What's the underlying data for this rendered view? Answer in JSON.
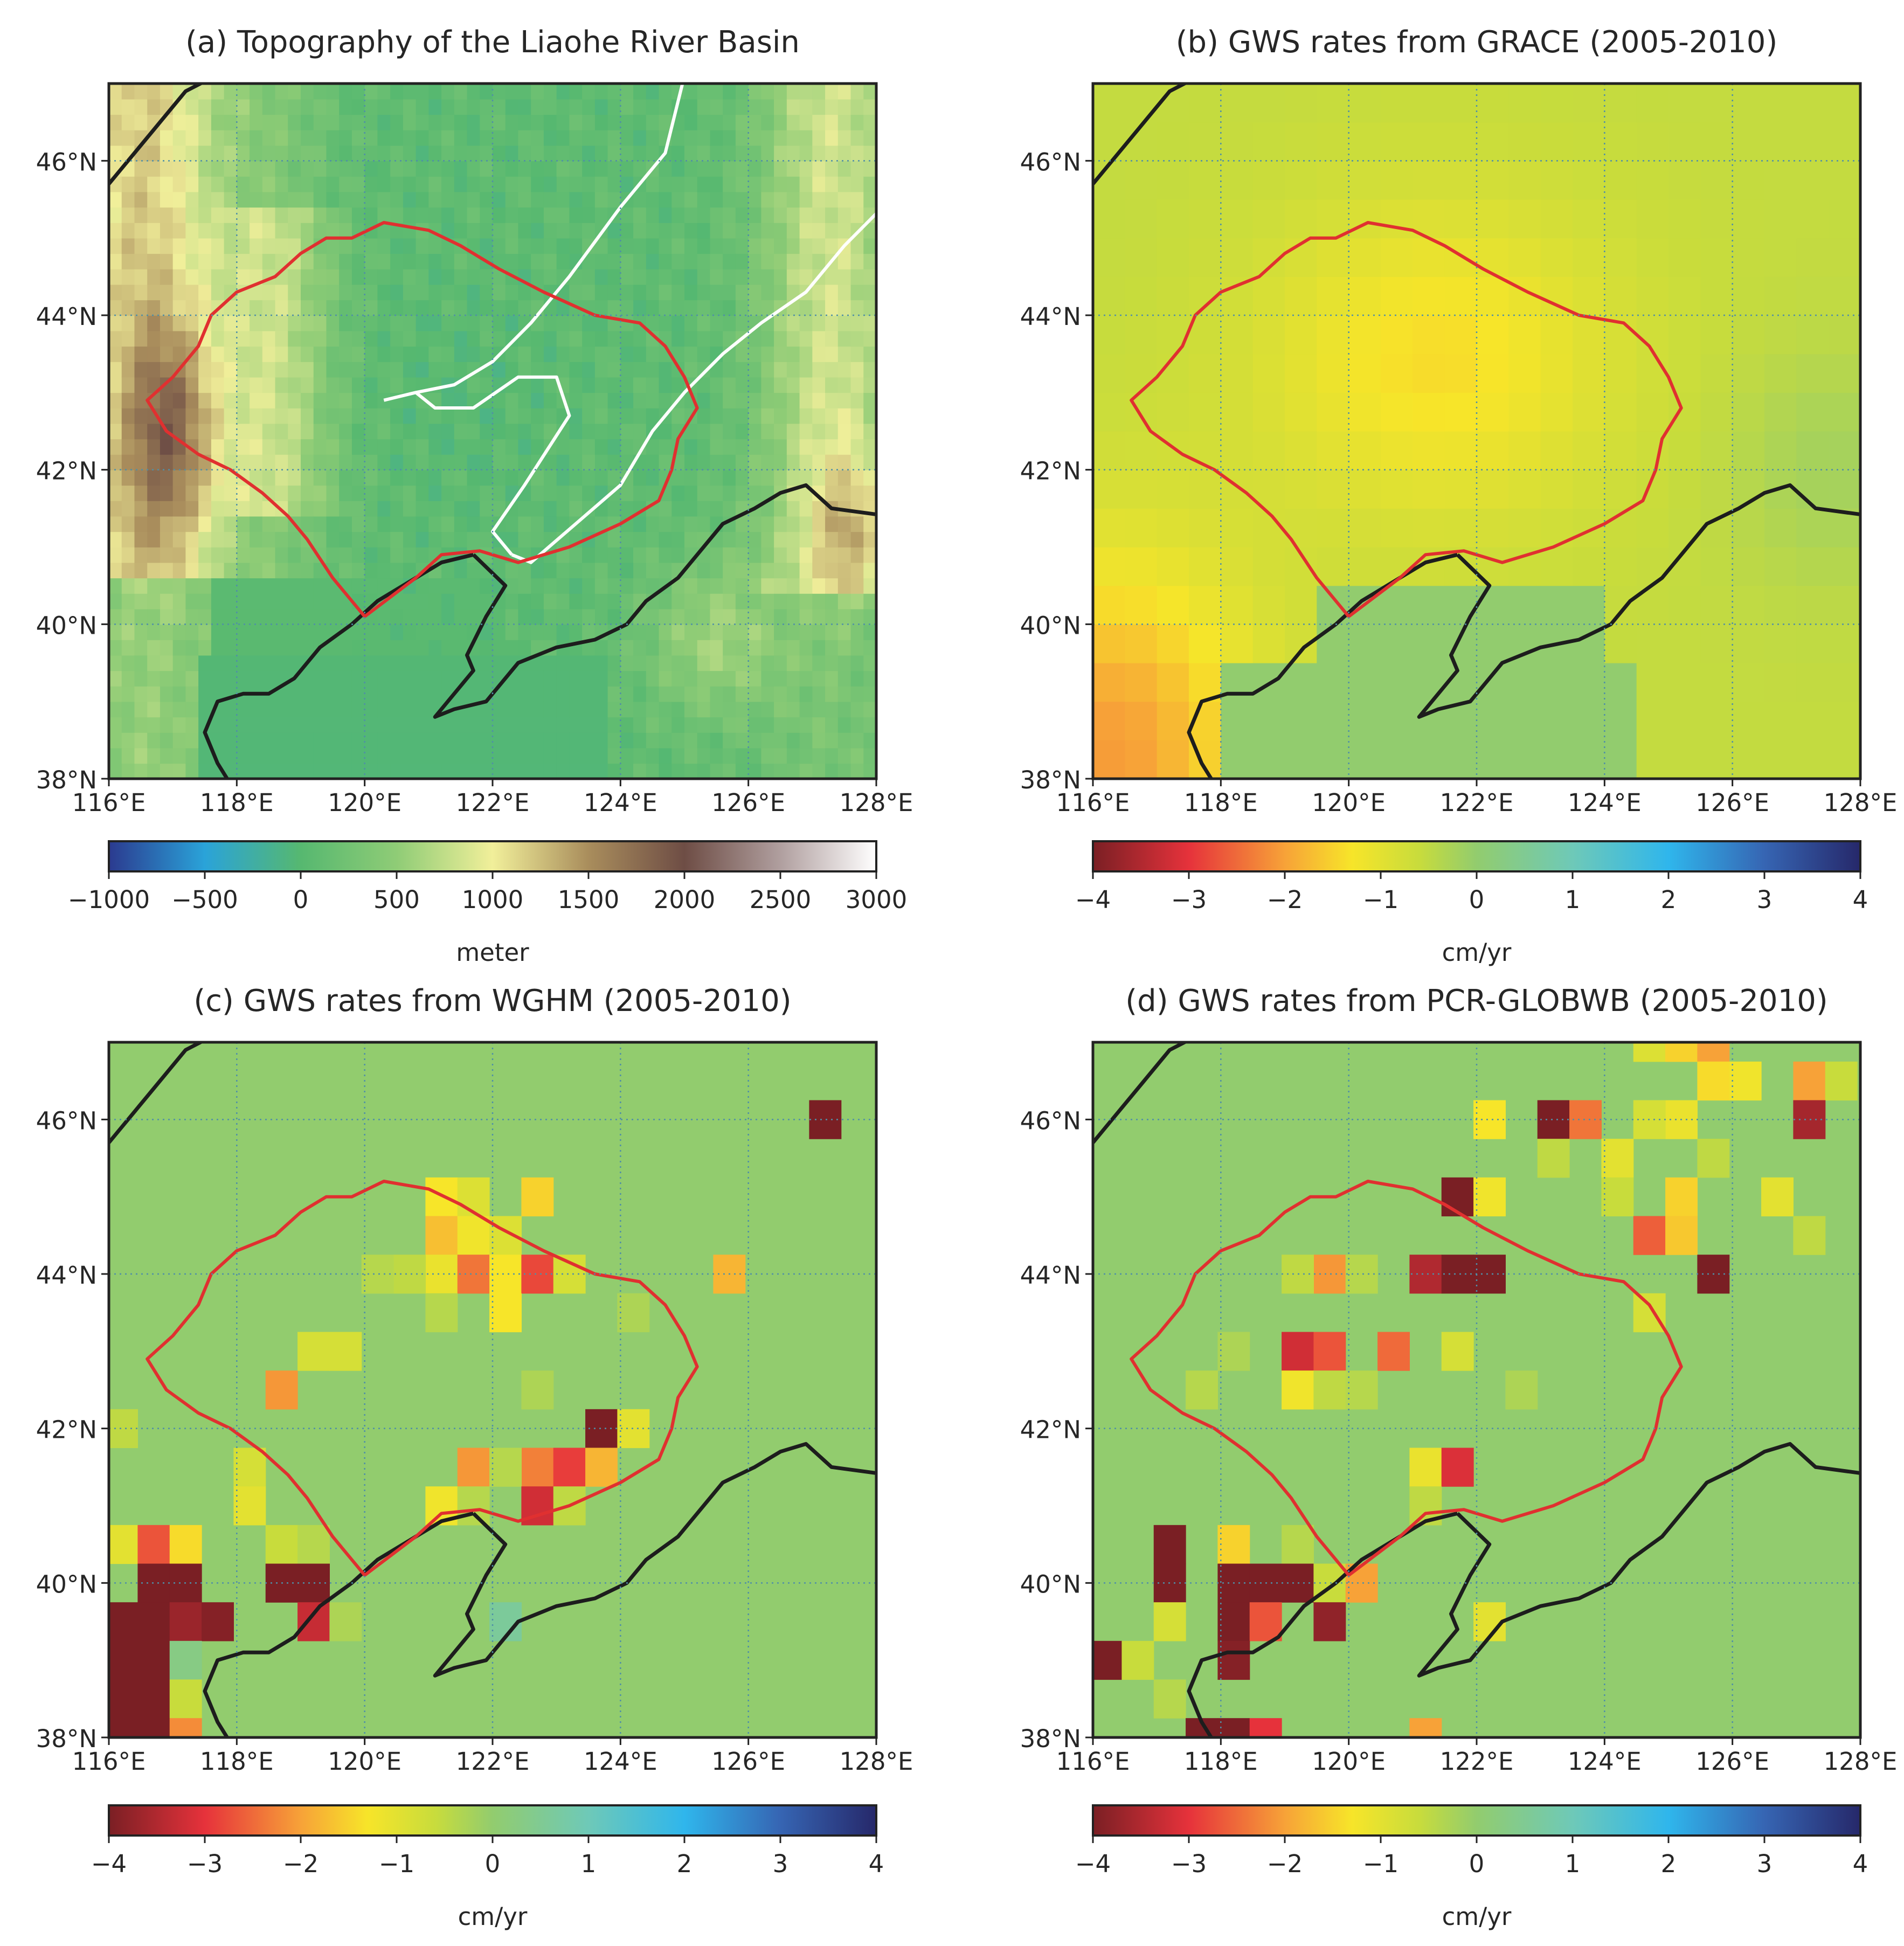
{
  "figure": {
    "panels": [
      {
        "id": "a",
        "title": "(a) Topography of the Liaohe River Basin",
        "kind": "topography",
        "colorbar": {
          "ticks": [
            "−1000",
            "−500",
            "0",
            "500",
            "1000",
            "1500",
            "2000",
            "2500",
            "3000"
          ],
          "label": "meter",
          "range": [
            -1000,
            3000
          ],
          "stops": [
            {
              "v": -1000,
              "c": "#2b3a8f"
            },
            {
              "v": -500,
              "c": "#2aa3d9"
            },
            {
              "v": 0,
              "c": "#56b870"
            },
            {
              "v": 500,
              "c": "#8fcc76"
            },
            {
              "v": 1000,
              "c": "#f1ef9a"
            },
            {
              "v": 1500,
              "c": "#a98d5c"
            },
            {
              "v": 2000,
              "c": "#6e4d45"
            },
            {
              "v": 2500,
              "c": "#b09f9f"
            },
            {
              "v": 3000,
              "c": "#ffffff"
            }
          ]
        }
      },
      {
        "id": "b",
        "title": "(b) GWS rates from GRACE (2005-2010)",
        "kind": "grace",
        "colorbar": {
          "ticks": [
            "−4",
            "−3",
            "−2",
            "−1",
            "0",
            "1",
            "2",
            "3",
            "4"
          ],
          "label": "cm/yr",
          "range": [
            -4,
            4
          ]
        }
      },
      {
        "id": "c",
        "title": "(c) GWS rates from WGHM (2005-2010)",
        "kind": "grid",
        "colorbar": {
          "ticks": [
            "−4",
            "−3",
            "−2",
            "−1",
            "0",
            "1",
            "2",
            "3",
            "4"
          ],
          "label": "cm/yr",
          "range": [
            -4,
            4
          ]
        }
      },
      {
        "id": "d",
        "title": "(d) GWS rates from PCR-GLOBWB (2005-2010)",
        "kind": "grid",
        "colorbar": {
          "ticks": [
            "−4",
            "−3",
            "−2",
            "−1",
            "0",
            "1",
            "2",
            "3",
            "4"
          ],
          "label": "cm/yr",
          "range": [
            -4,
            4
          ]
        }
      }
    ],
    "lat_ticks": [
      "38°N",
      "40°N",
      "42°N",
      "44°N",
      "46°N"
    ],
    "lon_ticks": [
      "116°E",
      "118°E",
      "120°E",
      "122°E",
      "124°E",
      "126°E",
      "128°E"
    ],
    "extent": {
      "lon": [
        116,
        128
      ],
      "lat": [
        38,
        47
      ]
    },
    "rate_stops": [
      {
        "v": -4,
        "c": "#7a1f24"
      },
      {
        "v": -3,
        "c": "#e6323b"
      },
      {
        "v": -2,
        "c": "#f7a238"
      },
      {
        "v": -1.3,
        "c": "#f7e529"
      },
      {
        "v": -0.6,
        "c": "#c8dc3c"
      },
      {
        "v": 0,
        "c": "#92cc6e"
      },
      {
        "v": 1,
        "c": "#6ec9b8"
      },
      {
        "v": 2,
        "c": "#2fb6ec"
      },
      {
        "v": 3,
        "c": "#3665b3"
      },
      {
        "v": 4,
        "c": "#26286a"
      }
    ],
    "colors": {
      "basin": "#e03030",
      "coast": "#1d1d1d",
      "river": "#ffffff",
      "grid": "#4f8fa7"
    },
    "wghm_cells": [
      [
        127.2,
        46,
        -4
      ],
      [
        121.2,
        45,
        -1.3
      ],
      [
        121.7,
        45,
        -0.9
      ],
      [
        122.7,
        45,
        -1.5
      ],
      [
        121.2,
        44.5,
        -1.7
      ],
      [
        121.7,
        44.5,
        -1.2
      ],
      [
        122.2,
        44.5,
        -0.9
      ],
      [
        121.2,
        44.0,
        -1.1
      ],
      [
        121.7,
        44.0,
        -2.4
      ],
      [
        122.2,
        44.0,
        -1.3
      ],
      [
        122.7,
        44.0,
        -2.8
      ],
      [
        123.2,
        44.0,
        -0.8
      ],
      [
        120.7,
        44.0,
        -0.5
      ],
      [
        120.2,
        44.0,
        -0.4
      ],
      [
        125.7,
        44.0,
        -1.8
      ],
      [
        121.2,
        43.5,
        -0.4
      ],
      [
        122.2,
        43.5,
        -1.3
      ],
      [
        124.2,
        43.5,
        -0.3
      ],
      [
        119.2,
        43.0,
        -0.8
      ],
      [
        119.7,
        43.0,
        -0.8
      ],
      [
        118.7,
        42.5,
        -2.1
      ],
      [
        122.7,
        42.5,
        -0.3
      ],
      [
        123.7,
        42.0,
        -4
      ],
      [
        124.2,
        42.0,
        -1.0
      ],
      [
        116.2,
        42.0,
        -0.5
      ],
      [
        118.2,
        41.5,
        -0.8
      ],
      [
        121.7,
        41.5,
        -2.1
      ],
      [
        122.7,
        41.5,
        -2.3
      ],
      [
        123.2,
        41.5,
        -2.9
      ],
      [
        123.7,
        41.5,
        -1.8
      ],
      [
        122.2,
        41.5,
        -0.4
      ],
      [
        118.2,
        41.0,
        -1.0
      ],
      [
        121.2,
        41.0,
        -1.2
      ],
      [
        122.7,
        41.0,
        -3.2
      ],
      [
        123.2,
        41.0,
        -0.5
      ],
      [
        121.7,
        41.0,
        -0.4
      ],
      [
        116.2,
        40.5,
        -1.0
      ],
      [
        116.7,
        40.5,
        -2.7
      ],
      [
        117.2,
        40.5,
        -1.4
      ],
      [
        118.7,
        40.5,
        -0.6
      ],
      [
        119.2,
        40.5,
        -0.4
      ],
      [
        116.7,
        40.0,
        -4
      ],
      [
        117.2,
        40.0,
        -4
      ],
      [
        118.7,
        40.0,
        -4
      ],
      [
        119.2,
        40.0,
        -4
      ],
      [
        116.2,
        39.5,
        -4
      ],
      [
        116.7,
        39.5,
        -4
      ],
      [
        117.2,
        39.5,
        -3.7
      ],
      [
        117.7,
        39.5,
        -3.9
      ],
      [
        119.2,
        39.5,
        -3.3
      ],
      [
        119.7,
        39.5,
        -0.3
      ],
      [
        122.2,
        39.5,
        0.6
      ],
      [
        116.2,
        39.0,
        -4
      ],
      [
        116.7,
        39.0,
        -4
      ],
      [
        117.2,
        39.0,
        0.3
      ],
      [
        116.2,
        38.5,
        -4
      ],
      [
        116.7,
        38.5,
        -4
      ],
      [
        117.2,
        38.5,
        -0.6
      ],
      [
        116.2,
        38.0,
        -4
      ],
      [
        116.7,
        38.0,
        -4
      ],
      [
        117.2,
        38.0,
        -2.2
      ]
    ],
    "pcr_cells": [
      [
        124.7,
        47,
        -0.9
      ],
      [
        125.2,
        47,
        -1.5
      ],
      [
        125.7,
        47,
        -2.0
      ],
      [
        127.2,
        46.5,
        -2.0
      ],
      [
        126.2,
        46.5,
        -1.2
      ],
      [
        125.7,
        46.5,
        -1.4
      ],
      [
        127.7,
        46.5,
        -0.6
      ],
      [
        122.2,
        46,
        -1.3
      ],
      [
        123.2,
        46,
        -4
      ],
      [
        123.7,
        46,
        -2.4
      ],
      [
        125.2,
        46,
        -1.1
      ],
      [
        127.2,
        46,
        -3.6
      ],
      [
        124.7,
        46,
        -0.8
      ],
      [
        124.2,
        45.5,
        -1.0
      ],
      [
        123.2,
        45.5,
        -0.5
      ],
      [
        125.7,
        45.5,
        -0.5
      ],
      [
        121.7,
        45,
        -4
      ],
      [
        122.2,
        45,
        -1.2
      ],
      [
        125.2,
        45,
        -1.5
      ],
      [
        126.7,
        45,
        -1.0
      ],
      [
        124.2,
        45,
        -0.6
      ],
      [
        124.7,
        44.5,
        -2.6
      ],
      [
        125.2,
        44.5,
        -1.6
      ],
      [
        127.2,
        44.5,
        -0.5
      ],
      [
        119.7,
        44.0,
        -2.1
      ],
      [
        121.2,
        44.0,
        -3.5
      ],
      [
        121.7,
        44.0,
        -4
      ],
      [
        122.2,
        44.0,
        -4
      ],
      [
        125.7,
        44.0,
        -4
      ],
      [
        119.2,
        44.0,
        -0.5
      ],
      [
        120.2,
        44.0,
        -0.4
      ],
      [
        124.7,
        43.5,
        -0.8
      ],
      [
        119.2,
        43.0,
        -3.2
      ],
      [
        119.7,
        43.0,
        -2.7
      ],
      [
        120.7,
        43.0,
        -2.5
      ],
      [
        121.7,
        43.0,
        -0.8
      ],
      [
        118.2,
        43.0,
        -0.3
      ],
      [
        119.2,
        42.5,
        -1.2
      ],
      [
        119.7,
        42.5,
        -0.5
      ],
      [
        120.2,
        42.5,
        -0.4
      ],
      [
        117.7,
        42.5,
        -0.4
      ],
      [
        122.7,
        42.5,
        -0.3
      ],
      [
        121.2,
        41.5,
        -1.1
      ],
      [
        121.7,
        41.5,
        -3.1
      ],
      [
        121.2,
        41.0,
        -0.5
      ],
      [
        117.2,
        40.5,
        -4
      ],
      [
        118.2,
        40.5,
        -1.5
      ],
      [
        119.2,
        40.5,
        -0.4
      ],
      [
        117.2,
        40.0,
        -4
      ],
      [
        118.2,
        40.0,
        -4
      ],
      [
        118.7,
        40.0,
        -4
      ],
      [
        119.2,
        40.0,
        -4
      ],
      [
        119.7,
        40.0,
        -0.6
      ],
      [
        120.2,
        40.0,
        -2.0
      ],
      [
        118.2,
        39.5,
        -4
      ],
      [
        118.7,
        39.5,
        -2.7
      ],
      [
        119.7,
        39.5,
        -3.8
      ],
      [
        117.2,
        39.5,
        -0.8
      ],
      [
        122.2,
        39.5,
        -1.0
      ],
      [
        116.2,
        39.0,
        -4
      ],
      [
        118.2,
        39.0,
        -3.9
      ],
      [
        116.7,
        39.0,
        -0.6
      ],
      [
        117.2,
        38.5,
        -0.4
      ],
      [
        117.7,
        38.0,
        -4
      ],
      [
        118.2,
        38.0,
        -4
      ],
      [
        118.7,
        38.0,
        -3.0
      ],
      [
        121.2,
        38.0,
        -2.0
      ]
    ]
  }
}
